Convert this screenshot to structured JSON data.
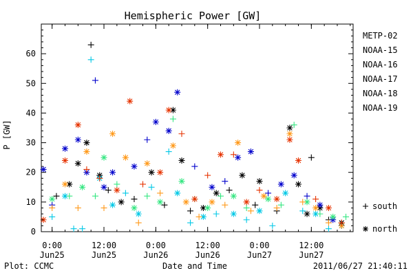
{
  "chart_data": {
    "type": "scatter",
    "title": "Hemispheric Power [GW]",
    "xlabel": "Date and Time",
    "ylabel": "P [GW]",
    "ylim": [
      0,
      70
    ],
    "y_ticks": [
      0,
      10,
      20,
      30,
      40,
      50,
      60
    ],
    "xlim": [
      "2011-06-24T21:30",
      "2011-06-27T21:40"
    ],
    "x_ticks": [
      {
        "t": "2011-06-25T00:00",
        "time": "0:00",
        "date": "Jun25"
      },
      {
        "t": "2011-06-25T12:00",
        "time": "12:00",
        "date": "Jun25"
      },
      {
        "t": "2011-06-26T00:00",
        "time": "0:00",
        "date": "Jun26"
      },
      {
        "t": "2011-06-26T12:00",
        "time": "12:00",
        "date": "Jun26"
      },
      {
        "t": "2011-06-27T00:00",
        "time": "0:00",
        "date": "Jun27"
      },
      {
        "t": "2011-06-27T12:00",
        "time": "12:00",
        "date": "Jun27"
      }
    ],
    "grid": false,
    "legend_position": "right",
    "marker_legend": [
      {
        "symbol": "+",
        "label": "south"
      },
      {
        "symbol": "*",
        "label": "north"
      }
    ],
    "series": [
      {
        "name": "METP-02",
        "color": "#000000",
        "points": [
          [
            "2011-06-25T01:00",
            12,
            "+"
          ],
          [
            "2011-06-25T04:00",
            16,
            "*"
          ],
          [
            "2011-06-25T06:00",
            23,
            "*"
          ],
          [
            "2011-06-25T08:00",
            30,
            "*"
          ],
          [
            "2011-06-25T09:00",
            63,
            "+"
          ],
          [
            "2011-06-25T11:00",
            19,
            "*"
          ],
          [
            "2011-06-25T13:00",
            14,
            "+"
          ],
          [
            "2011-06-25T16:00",
            10,
            "*"
          ],
          [
            "2011-06-25T19:00",
            11,
            "+"
          ],
          [
            "2011-06-25T23:00",
            20,
            "*"
          ],
          [
            "2011-06-26T02:00",
            9,
            "+"
          ],
          [
            "2011-06-26T04:00",
            41,
            "*"
          ],
          [
            "2011-06-26T06:00",
            24,
            "*"
          ],
          [
            "2011-06-26T08:00",
            7,
            "+"
          ],
          [
            "2011-06-26T11:00",
            8,
            "*"
          ],
          [
            "2011-06-26T14:00",
            13,
            "*"
          ],
          [
            "2011-06-26T17:00",
            14,
            "+"
          ],
          [
            "2011-06-26T20:00",
            19,
            "*"
          ],
          [
            "2011-06-26T23:00",
            9,
            "+"
          ],
          [
            "2011-06-27T00:00",
            17,
            "*"
          ],
          [
            "2011-06-27T04:00",
            7,
            "+"
          ],
          [
            "2011-06-27T07:00",
            35,
            "*"
          ],
          [
            "2011-06-27T09:00",
            16,
            "*"
          ],
          [
            "2011-06-27T11:00",
            6,
            "*"
          ],
          [
            "2011-06-27T12:00",
            25,
            "+"
          ],
          [
            "2011-06-27T14:00",
            8,
            "*"
          ],
          [
            "2011-06-27T16:00",
            4,
            "+"
          ],
          [
            "2011-06-27T19:00",
            3,
            "*"
          ]
        ]
      },
      {
        "name": "NOAA-15",
        "color": "#0000cc",
        "points": [
          [
            "2011-06-24T22:00",
            21,
            "*"
          ],
          [
            "2011-06-25T00:00",
            9,
            "+"
          ],
          [
            "2011-06-25T03:00",
            28,
            "*"
          ],
          [
            "2011-06-25T06:00",
            31,
            "*"
          ],
          [
            "2011-06-25T08:00",
            20,
            "*"
          ],
          [
            "2011-06-25T10:00",
            51,
            "+"
          ],
          [
            "2011-06-25T12:00",
            15,
            "*"
          ],
          [
            "2011-06-25T14:00",
            20,
            "*"
          ],
          [
            "2011-06-25T19:00",
            22,
            "*"
          ],
          [
            "2011-06-25T22:00",
            31,
            "+"
          ],
          [
            "2011-06-26T00:00",
            37,
            "*"
          ],
          [
            "2011-06-26T03:00",
            34,
            "*"
          ],
          [
            "2011-06-26T05:00",
            47,
            "*"
          ],
          [
            "2011-06-26T09:00",
            22,
            "+"
          ],
          [
            "2011-06-26T13:00",
            15,
            "*"
          ],
          [
            "2011-06-26T16:00",
            17,
            "+"
          ],
          [
            "2011-06-26T19:00",
            25,
            "*"
          ],
          [
            "2011-06-26T22:00",
            27,
            "*"
          ],
          [
            "2011-06-27T02:00",
            13,
            "+"
          ],
          [
            "2011-06-27T05:00",
            16,
            "*"
          ],
          [
            "2011-06-27T08:00",
            19,
            "*"
          ],
          [
            "2011-06-27T11:00",
            12,
            "+"
          ],
          [
            "2011-06-27T14:00",
            9,
            "*"
          ],
          [
            "2011-06-27T17:00",
            4,
            "*"
          ],
          [
            "2011-06-27T19:00",
            2,
            "+"
          ]
        ]
      },
      {
        "name": "NOAA-16",
        "color": "#00c8e6",
        "points": [
          [
            "2011-06-25T00:00",
            5,
            "+"
          ],
          [
            "2011-06-25T03:00",
            12,
            "*"
          ],
          [
            "2011-06-25T05:00",
            1,
            "+"
          ],
          [
            "2011-06-25T07:00",
            1,
            "+"
          ],
          [
            "2011-06-25T09:00",
            58,
            "+"
          ],
          [
            "2011-06-25T11:00",
            18,
            "*"
          ],
          [
            "2011-06-25T14:00",
            9,
            "*"
          ],
          [
            "2011-06-25T17:00",
            13,
            "+"
          ],
          [
            "2011-06-25T20:00",
            6,
            "*"
          ],
          [
            "2011-06-25T23:00",
            15,
            "+"
          ],
          [
            "2011-06-26T03:00",
            27,
            "+"
          ],
          [
            "2011-06-26T05:00",
            13,
            "*"
          ],
          [
            "2011-06-26T08:00",
            3,
            "+"
          ],
          [
            "2011-06-26T11:00",
            5,
            "*"
          ],
          [
            "2011-06-26T14:00",
            6,
            "+"
          ],
          [
            "2011-06-26T18:00",
            6,
            "*"
          ],
          [
            "2011-06-26T21:00",
            4,
            "+"
          ],
          [
            "2011-06-27T00:00",
            7,
            "*"
          ],
          [
            "2011-06-27T03:00",
            2,
            "+"
          ],
          [
            "2011-06-27T06:00",
            13,
            "*"
          ],
          [
            "2011-06-27T10:00",
            7,
            "+"
          ],
          [
            "2011-06-27T13:00",
            6,
            "*"
          ],
          [
            "2011-06-27T16:00",
            1,
            "+"
          ],
          [
            "2011-06-27T19:00",
            2,
            "*"
          ]
        ]
      },
      {
        "name": "NOAA-17",
        "color": "#33e680",
        "points": [
          [
            "2011-06-25T00:00",
            11,
            "*"
          ],
          [
            "2011-06-25T04:00",
            12,
            "+"
          ],
          [
            "2011-06-25T07:00",
            15,
            "*"
          ],
          [
            "2011-06-25T10:00",
            12,
            "+"
          ],
          [
            "2011-06-25T12:00",
            25,
            "*"
          ],
          [
            "2011-06-25T15:00",
            16,
            "+"
          ],
          [
            "2011-06-25T19:00",
            8,
            "*"
          ],
          [
            "2011-06-25T22:00",
            12,
            "+"
          ],
          [
            "2011-06-26T01:00",
            10,
            "*"
          ],
          [
            "2011-06-26T04:00",
            38,
            "+"
          ],
          [
            "2011-06-26T06:00",
            17,
            "*"
          ],
          [
            "2011-06-26T09:00",
            11,
            "+"
          ],
          [
            "2011-06-26T12:00",
            8,
            "*"
          ],
          [
            "2011-06-26T15:00",
            12,
            "+"
          ],
          [
            "2011-06-26T18:00",
            12,
            "*"
          ],
          [
            "2011-06-26T21:00",
            8,
            "+"
          ],
          [
            "2011-06-27T02:00",
            11,
            "*"
          ],
          [
            "2011-06-27T05:00",
            9,
            "+"
          ],
          [
            "2011-06-27T08:00",
            36,
            "+"
          ],
          [
            "2011-06-27T11:00",
            10,
            "*"
          ],
          [
            "2011-06-27T14:00",
            6,
            "+"
          ],
          [
            "2011-06-27T17:00",
            5,
            "*"
          ],
          [
            "2011-06-27T20:00",
            5,
            "+"
          ]
        ]
      },
      {
        "name": "NOAA-18",
        "color": "#ff9919",
        "points": [
          [
            "2011-06-25T00:00",
            8,
            "+"
          ],
          [
            "2011-06-25T03:00",
            16,
            "*"
          ],
          [
            "2011-06-25T06:00",
            8,
            "+"
          ],
          [
            "2011-06-25T08:00",
            27,
            "*"
          ],
          [
            "2011-06-25T12:00",
            8,
            "+"
          ],
          [
            "2011-06-25T14:00",
            33,
            "*"
          ],
          [
            "2011-06-25T17:00",
            25,
            "*"
          ],
          [
            "2011-06-25T20:00",
            3,
            "+"
          ],
          [
            "2011-06-25T22:00",
            23,
            "*"
          ],
          [
            "2011-06-26T01:00",
            13,
            "+"
          ],
          [
            "2011-06-26T04:00",
            29,
            "*"
          ],
          [
            "2011-06-26T07:00",
            10,
            "*"
          ],
          [
            "2011-06-26T10:00",
            5,
            "+"
          ],
          [
            "2011-06-26T13:00",
            10,
            "*"
          ],
          [
            "2011-06-26T16:00",
            9,
            "+"
          ],
          [
            "2011-06-26T19:00",
            30,
            "*"
          ],
          [
            "2011-06-26T22:00",
            7,
            "+"
          ],
          [
            "2011-06-27T01:00",
            12,
            "*"
          ],
          [
            "2011-06-27T04:00",
            8,
            "+"
          ],
          [
            "2011-06-27T07:00",
            33,
            "*"
          ],
          [
            "2011-06-27T10:00",
            10,
            "+"
          ],
          [
            "2011-06-27T13:00",
            8,
            "*"
          ],
          [
            "2011-06-27T16:00",
            3,
            "+"
          ],
          [
            "2011-06-27T19:00",
            2,
            "*"
          ]
        ]
      },
      {
        "name": "NOAA-19",
        "color": "#e63300",
        "points": [
          [
            "2011-06-24T22:00",
            4,
            "*"
          ],
          [
            "2011-06-25T03:00",
            24,
            "*"
          ],
          [
            "2011-06-25T06:00",
            36,
            "*"
          ],
          [
            "2011-06-25T08:00",
            21,
            "+"
          ],
          [
            "2011-06-25T11:00",
            18,
            "+"
          ],
          [
            "2011-06-25T15:00",
            14,
            "*"
          ],
          [
            "2011-06-25T18:00",
            44,
            "*"
          ],
          [
            "2011-06-25T21:00",
            16,
            "+"
          ],
          [
            "2011-06-26T01:00",
            20,
            "*"
          ],
          [
            "2011-06-26T03:00",
            41,
            "*"
          ],
          [
            "2011-06-26T06:00",
            33,
            "+"
          ],
          [
            "2011-06-26T09:00",
            11,
            "*"
          ],
          [
            "2011-06-26T12:00",
            19,
            "+"
          ],
          [
            "2011-06-26T15:00",
            26,
            "*"
          ],
          [
            "2011-06-26T18:00",
            26,
            "+"
          ],
          [
            "2011-06-26T21:00",
            10,
            "*"
          ],
          [
            "2011-06-27T00:00",
            14,
            "+"
          ],
          [
            "2011-06-27T04:00",
            11,
            "*"
          ],
          [
            "2011-06-27T07:00",
            31,
            "*"
          ],
          [
            "2011-06-27T09:00",
            24,
            "*"
          ],
          [
            "2011-06-27T13:00",
            11,
            "+"
          ],
          [
            "2011-06-27T16:00",
            8,
            "*"
          ],
          [
            "2011-06-27T19:00",
            3,
            "+"
          ]
        ]
      }
    ]
  },
  "footer": {
    "left": "Plot: CCMC",
    "right": "2011/06/27 21:40:11"
  }
}
